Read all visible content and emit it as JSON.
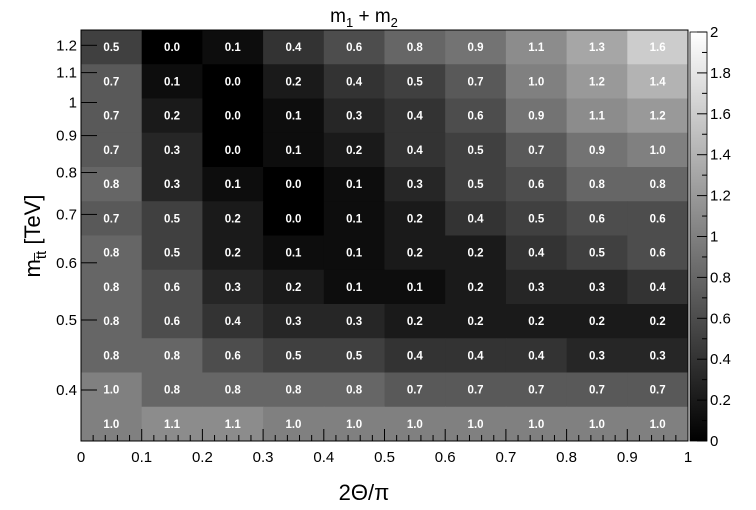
{
  "chart_data": {
    "type": "heatmap",
    "title": "m₁ + m₂",
    "title_main": "m",
    "title_sub1": "1",
    "title_plus": " + m",
    "title_sub2": "2",
    "xlabel": "2Θ/π",
    "ylabel": "m",
    "ylabel_sub": "t̅t",
    "ylabel_unit": " [TeV]",
    "x_edges": [
      0,
      0.1,
      0.2,
      0.3,
      0.4,
      0.5,
      0.6,
      0.7,
      0.8,
      0.9,
      1.0
    ],
    "xlim": [
      0,
      1
    ],
    "x_ticks": [
      {
        "value": 0,
        "label": "0"
      },
      {
        "value": 0.1,
        "label": "0.1"
      },
      {
        "value": 0.2,
        "label": "0.2"
      },
      {
        "value": 0.3,
        "label": "0.3"
      },
      {
        "value": 0.4,
        "label": "0.4"
      },
      {
        "value": 0.5,
        "label": "0.5"
      },
      {
        "value": 0.6,
        "label": "0.6"
      },
      {
        "value": 0.7,
        "label": "0.7"
      },
      {
        "value": 0.8,
        "label": "0.8"
      },
      {
        "value": 0.9,
        "label": "0.9"
      },
      {
        "value": 1.0,
        "label": "1"
      }
    ],
    "y_scale": "log",
    "ylim": [
      0.3,
      1.3
    ],
    "y_ticks": [
      {
        "value": 0.4,
        "label": "0.4"
      },
      {
        "value": 0.5,
        "label": "0.5"
      },
      {
        "value": 0.6,
        "label": "0.6"
      },
      {
        "value": 0.7,
        "label": "0.7"
      },
      {
        "value": 0.8,
        "label": "0.8"
      },
      {
        "value": 0.9,
        "label": "0.9"
      },
      {
        "value": 1.0,
        "label": "1"
      },
      {
        "value": 1.1,
        "label": "1.1"
      },
      {
        "value": 1.2,
        "label": "1.2"
      }
    ],
    "values": [
      [
        0.5,
        0.0,
        0.1,
        0.4,
        0.6,
        0.8,
        0.9,
        1.1,
        1.3,
        1.6
      ],
      [
        0.7,
        0.1,
        0.0,
        0.2,
        0.4,
        0.5,
        0.7,
        1.0,
        1.2,
        1.4
      ],
      [
        0.7,
        0.2,
        0.0,
        0.1,
        0.3,
        0.4,
        0.6,
        0.9,
        1.1,
        1.2
      ],
      [
        0.7,
        0.3,
        0.0,
        0.1,
        0.2,
        0.4,
        0.5,
        0.7,
        0.9,
        1.0
      ],
      [
        0.8,
        0.3,
        0.1,
        0.0,
        0.1,
        0.3,
        0.5,
        0.6,
        0.8,
        0.8
      ],
      [
        0.7,
        0.5,
        0.2,
        0.0,
        0.1,
        0.2,
        0.4,
        0.5,
        0.6,
        0.6
      ],
      [
        0.8,
        0.5,
        0.2,
        0.1,
        0.1,
        0.2,
        0.2,
        0.4,
        0.5,
        0.6
      ],
      [
        0.8,
        0.6,
        0.3,
        0.2,
        0.1,
        0.1,
        0.2,
        0.3,
        0.3,
        0.4
      ],
      [
        0.8,
        0.6,
        0.4,
        0.3,
        0.3,
        0.2,
        0.2,
        0.2,
        0.2,
        0.2
      ],
      [
        0.8,
        0.8,
        0.6,
        0.5,
        0.5,
        0.4,
        0.4,
        0.4,
        0.3,
        0.3
      ],
      [
        1.0,
        0.8,
        0.8,
        0.8,
        0.8,
        0.7,
        0.7,
        0.7,
        0.7,
        0.7
      ],
      [
        1.0,
        1.1,
        1.1,
        1.0,
        1.0,
        1.0,
        1.0,
        1.0,
        1.0,
        1.0
      ]
    ],
    "colorbar": {
      "range": [
        0,
        2
      ],
      "colormap": "grayscale",
      "color_low": "#000000",
      "color_high": "#ffffff",
      "ticks": [
        {
          "value": 0,
          "label": "0"
        },
        {
          "value": 0.2,
          "label": "0.2"
        },
        {
          "value": 0.4,
          "label": "0.4"
        },
        {
          "value": 0.6,
          "label": "0.6"
        },
        {
          "value": 0.8,
          "label": "0.8"
        },
        {
          "value": 1.0,
          "label": "1"
        },
        {
          "value": 1.2,
          "label": "1.2"
        },
        {
          "value": 1.4,
          "label": "1.4"
        },
        {
          "value": 1.6,
          "label": "1.6"
        },
        {
          "value": 1.8,
          "label": "1.8"
        },
        {
          "value": 2.0,
          "label": "2"
        }
      ]
    }
  }
}
